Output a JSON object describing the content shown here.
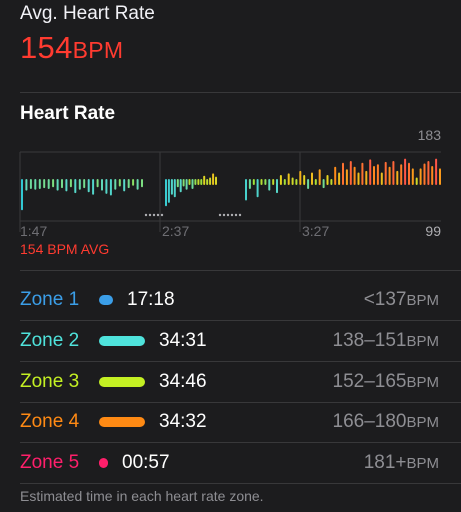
{
  "summary": {
    "label": "Avg. Heart Rate",
    "value": "154",
    "unit": "BPM"
  },
  "heart_rate": {
    "title": "Heart Rate",
    "avg_text": "154 BPM AVG"
  },
  "chart_data": {
    "type": "bar",
    "ylim": [
      99,
      183
    ],
    "y_tick_labels": [
      "183",
      "99"
    ],
    "x_tick_labels": [
      "1:47",
      "2:37",
      "3:27"
    ],
    "segments": [
      {
        "values": [
          112,
          136,
          138,
          137,
          138,
          139,
          138,
          140,
          136,
          139,
          135,
          140,
          133,
          137,
          139,
          134,
          131,
          140,
          136,
          132,
          130,
          137,
          141,
          135,
          139,
          142,
          137,
          140
        ]
      },
      {
        "values": [
          117,
          121,
          131,
          128,
          140,
          134,
          141,
          137,
          148,
          138,
          143,
          150,
          145,
          154,
          149,
          152,
          157,
          153
        ]
      },
      {
        "values": [
          124,
          138,
          145,
          128,
          148,
          143,
          136,
          150,
          133,
          155,
          146,
          157,
          152,
          148,
          160,
          155,
          138,
          158,
          147,
          162,
          139,
          155,
          150,
          165,
          158,
          170,
          162,
          172,
          165,
          158,
          170,
          160,
          174,
          166,
          168,
          158,
          171,
          165,
          172,
          160,
          168,
          175,
          170,
          163,
          152,
          163,
          169,
          172,
          166,
          175,
          163
        ]
      }
    ],
    "color_scale": [
      {
        "bpm": 110,
        "color": "#2ec7d4"
      },
      {
        "bpm": 135,
        "color": "#5ad8c8"
      },
      {
        "bpm": 145,
        "color": "#9ee33a"
      },
      {
        "bpm": 155,
        "color": "#e6d320"
      },
      {
        "bpm": 165,
        "color": "#ff8c1a"
      },
      {
        "bpm": 180,
        "color": "#ff3b5f"
      }
    ]
  },
  "zones": [
    {
      "name": "Zone 1",
      "time": "17:18",
      "range": "<137",
      "unit": "BPM",
      "color": "#3b9ee8",
      "fraction": 0.15
    },
    {
      "name": "Zone 2",
      "time": "34:31",
      "range": "138–151",
      "unit": "BPM",
      "color": "#4fe3dc",
      "fraction": 0.99
    },
    {
      "name": "Zone 3",
      "time": "34:46",
      "range": "152–165",
      "unit": "BPM",
      "color": "#c4f023",
      "fraction": 1.0
    },
    {
      "name": "Zone 4",
      "time": "34:32",
      "range": "166–180",
      "unit": "BPM",
      "color": "#ff8a14",
      "fraction": 0.99
    },
    {
      "name": "Zone 5",
      "time": "00:57",
      "range": "181+",
      "unit": "BPM",
      "color": "#ff1f6b",
      "fraction": 0.03
    }
  ],
  "footnote": "Estimated time in each heart rate zone."
}
